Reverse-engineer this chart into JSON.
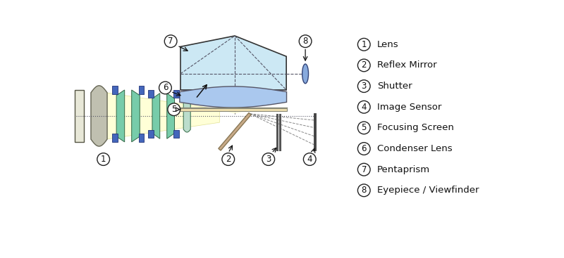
{
  "background_color": "#ffffff",
  "legend_items": [
    {
      "num": "1",
      "label": "Lens"
    },
    {
      "num": "2",
      "label": "Reflex Mirror"
    },
    {
      "num": "3",
      "label": "Shutter"
    },
    {
      "num": "4",
      "label": "Image Sensor"
    },
    {
      "num": "5",
      "label": "Focusing Screen"
    },
    {
      "num": "6",
      "label": "Condenser Lens"
    },
    {
      "num": "7",
      "label": "Pentaprism"
    },
    {
      "num": "8",
      "label": "Eyepiece / Viewfinder"
    }
  ],
  "colors": {
    "pentaprism_fill": "#cce8f4",
    "pentaprism_edge": "#333333",
    "condenser_fill": "#aac8ee",
    "condenser_edge": "#555566",
    "focusing_fill": "#f0e0b0",
    "focusing_edge": "#888877",
    "eyepiece_fill": "#88aadd",
    "eyepiece_edge": "#334477",
    "mirror_fill": "#c8aa88",
    "mirror_edge": "#887755",
    "dashed_color": "#555566",
    "dotted_color": "#555566",
    "beam_fill": "#ffffd0",
    "beam_edge": "#dddd88",
    "green_fill": "#77ccaa",
    "green_edge": "#336644",
    "blue_fill": "#4466bb",
    "blue_edge": "#223377",
    "gray_lens_fill": "#c0c0b0",
    "gray_lens_edge": "#666655",
    "green_lens_fill": "#bbddcc",
    "green_lens_edge": "#447755",
    "housing_fill": "#e8e8d8",
    "housing_edge": "#555544",
    "circle_fill": "#ffffff",
    "circle_edge": "#222222",
    "text_color": "#111111",
    "arrow_color": "#111111",
    "axis_color": "#555566"
  }
}
